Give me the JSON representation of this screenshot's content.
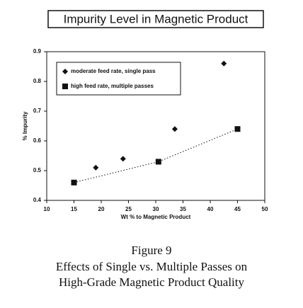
{
  "chart_data": {
    "type": "scatter",
    "title": "Impurity Level in Magnetic Product",
    "x_label": "Wt % to Magnetic Product",
    "y_label": "% Impurity",
    "xlim": [
      10,
      50
    ],
    "xticks": [
      10,
      15,
      20,
      25,
      30,
      35,
      40,
      45,
      50
    ],
    "ylim": [
      0.4,
      0.9
    ],
    "yticks": [
      0.4,
      0.5,
      0.6,
      0.7,
      0.8,
      0.9
    ],
    "legend_position": "upper left",
    "series": [
      {
        "name": "moderate feed rate, single pass",
        "marker": "diamond",
        "color": "#111111",
        "trendline": false,
        "x": [
          19,
          24,
          33.5,
          42.5
        ],
        "values": [
          0.51,
          0.54,
          0.64,
          0.86
        ]
      },
      {
        "name": "high feed rate, multiple passes",
        "marker": "square",
        "color": "#111111",
        "trendline": true,
        "x": [
          15,
          30.5,
          45
        ],
        "values": [
          0.46,
          0.53,
          0.64
        ]
      }
    ],
    "caption": [
      "Figure 9",
      "Effects of Single vs. Multiple Passes on",
      "High-Grade Magnetic Product Quality"
    ]
  }
}
